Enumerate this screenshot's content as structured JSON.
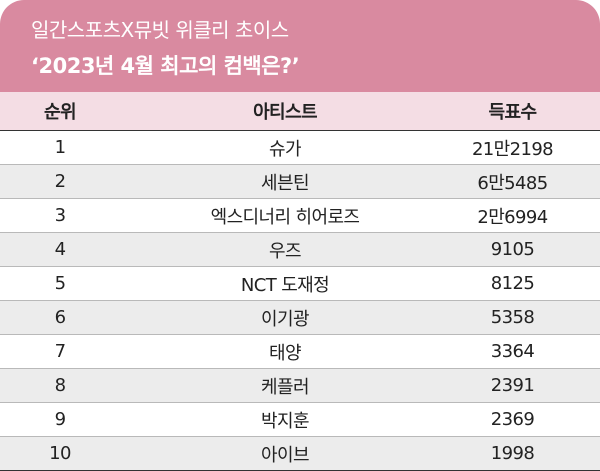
{
  "header": {
    "line1": "일간스포츠X뮤빗 위클리 초이스",
    "line2": "‘2023년 4월 최고의 컴백은?’"
  },
  "columns": {
    "rank": "순위",
    "artist": "아티스트",
    "votes": "득표수"
  },
  "rows": [
    {
      "rank": "1",
      "artist": "슈가",
      "votes": "21만2198"
    },
    {
      "rank": "2",
      "artist": "세븐틴",
      "votes": "6만5485"
    },
    {
      "rank": "3",
      "artist": "엑스디너리 히어로즈",
      "votes": "2만6994"
    },
    {
      "rank": "4",
      "artist": "우즈",
      "votes": "9105"
    },
    {
      "rank": "5",
      "artist": "NCT 도재정",
      "votes": "8125"
    },
    {
      "rank": "6",
      "artist": "이기광",
      "votes": "5358"
    },
    {
      "rank": "7",
      "artist": "태양",
      "votes": "3364"
    },
    {
      "rank": "8",
      "artist": "케플러",
      "votes": "2391"
    },
    {
      "rank": "9",
      "artist": "박지훈",
      "votes": "2369"
    },
    {
      "rank": "10",
      "artist": "아이브",
      "votes": "1998"
    }
  ],
  "colors": {
    "header_bg": "#d98aa0",
    "column_header_bg": "#f4dde4",
    "alt_row_bg": "#ececec"
  }
}
